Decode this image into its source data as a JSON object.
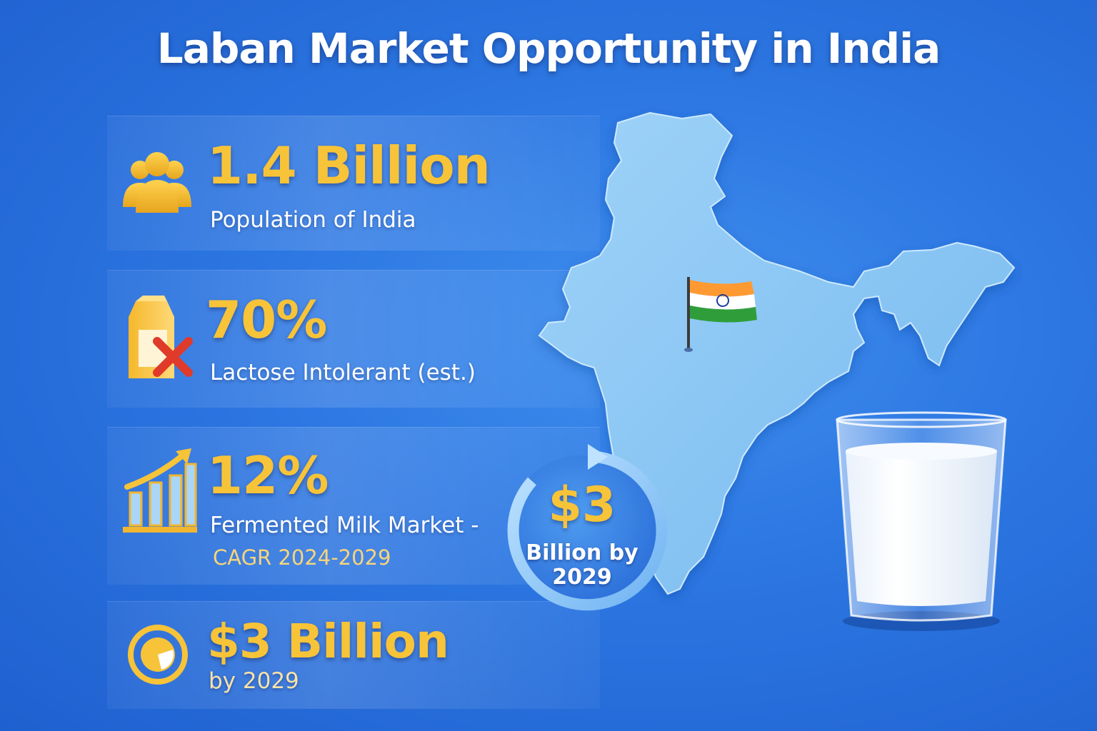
{
  "title": "Laban Market Opportunity in India",
  "stats": [
    {
      "value": "1.4 Billion",
      "label": "Population of India",
      "icon": "people-icon"
    },
    {
      "value": "70%",
      "label": "Lactose Intolerant (est.)",
      "icon": "milk-carton-cross-icon"
    },
    {
      "value": "12%",
      "label": "Fermented Milk Market -",
      "sublabel": "CAGR 2024-2029",
      "icon": "growth-chart-icon"
    },
    {
      "value": "$3 Billion",
      "label": "by 2029",
      "icon": "pie-target-icon"
    }
  ],
  "badge": {
    "amount": "$3",
    "line1": "Billion by",
    "line2": "2029"
  },
  "colors": {
    "accent_gold": "#f7c339",
    "background": "#2d78e3",
    "map": "#8fcaf5"
  }
}
